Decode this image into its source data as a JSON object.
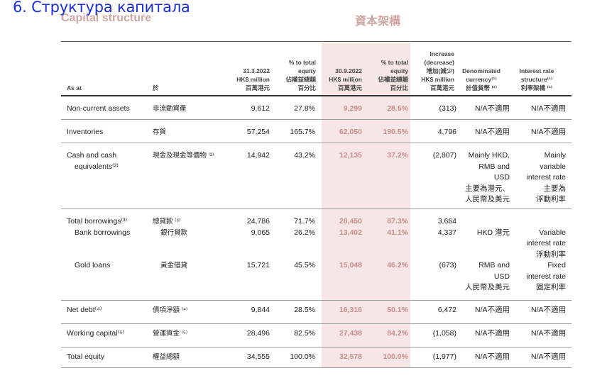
{
  "overlay_title": "6. Структура капитала",
  "title_en": "Capital structure",
  "title_zh": "資本架構",
  "headers": {
    "as_at": "As at",
    "as_at_zh": "於",
    "col1": [
      "31.3.2022",
      "HK$ million",
      "百萬港元"
    ],
    "col2": [
      "% to total",
      "equity",
      "佔權益總額",
      "百分比"
    ],
    "col3": [
      "30.9.2022",
      "HK$ million",
      "百萬港元"
    ],
    "col4": [
      "% to total",
      "equity",
      "佔權益總額",
      "百分比"
    ],
    "col5": [
      "Increase",
      "(decrease)",
      "增加(減少)",
      "HK$ million",
      "百萬港元"
    ],
    "col6": [
      "Denominated",
      "currency⁽¹⁾",
      "計值貨幣 ⁽¹⁾"
    ],
    "col7": [
      "Interest rate",
      "structure⁽¹⁾",
      "利率架構 ⁽¹⁾"
    ]
  },
  "rows": [
    {
      "en": [
        "Non-current assets"
      ],
      "zh": [
        "非流動資產"
      ],
      "c1": [
        "9,612"
      ],
      "c2": [
        "27.8%"
      ],
      "c3": [
        "9,299"
      ],
      "c4": [
        "28.5%"
      ],
      "c5": [
        "(313)"
      ],
      "c6": [
        "N/A不適用"
      ],
      "c7": [
        "N/A不適用"
      ]
    },
    {
      "en": [
        "Inventories"
      ],
      "zh": [
        "存貨"
      ],
      "c1": [
        "57,254"
      ],
      "c2": [
        "165.7%"
      ],
      "c3": [
        "62,050"
      ],
      "c4": [
        "190.5%"
      ],
      "c5": [
        "4,796"
      ],
      "c6": [
        "N/A不適用"
      ],
      "c7": [
        "N/A不適用"
      ]
    },
    {
      "en": [
        "Cash and cash",
        "  equivalents⁽²⁾"
      ],
      "zh": [
        "現金及現金等價物 ⁽²⁾"
      ],
      "c1": [
        "14,942"
      ],
      "c2": [
        "43.2%"
      ],
      "c3": [
        "12,135"
      ],
      "c4": [
        "37.2%"
      ],
      "c5": [
        "(2,807)"
      ],
      "c6": [
        "Mainly HKD,",
        "RMB and",
        "USD",
        "主要為港元、",
        "人民幣及美元"
      ],
      "c7": [
        "Mainly",
        "variable",
        "interest rate",
        "主要為",
        "浮動利率"
      ]
    },
    {
      "en": [
        "Total borrowings⁽³⁾",
        "  Bank borrowings"
      ],
      "zh": [
        "總貸款 ⁽³⁾",
        "  銀行貸款"
      ],
      "c1": [
        "24,786",
        "9,065"
      ],
      "c2": [
        "71.7%",
        "26.2%"
      ],
      "c3": [
        "28,450",
        "13,402"
      ],
      "c4": [
        "87.3%",
        "41.1%"
      ],
      "c5": [
        "3,664",
        "4,337"
      ],
      "c6": [
        "",
        "HKD 港元"
      ],
      "c7": [
        "",
        "Variable",
        "interest rate",
        "浮動利率"
      ]
    },
    {
      "en": [
        "  Gold loans"
      ],
      "zh": [
        "  黃金借貸"
      ],
      "c1": [
        "15,721"
      ],
      "c2": [
        "45.5%"
      ],
      "c3": [
        "15,048"
      ],
      "c4": [
        "46.2%"
      ],
      "c5": [
        "(673)"
      ],
      "c6": [
        "RMB and",
        "USD",
        "人民幣及美元"
      ],
      "c7": [
        "Fixed",
        "interest rate",
        "固定利率"
      ]
    },
    {
      "en": [
        "Net debt⁽⁴⁾"
      ],
      "zh": [
        "債項淨額 ⁽⁴⁾"
      ],
      "c1": [
        "9,844"
      ],
      "c2": [
        "28.5%"
      ],
      "c3": [
        "16,316"
      ],
      "c4": [
        "50.1%"
      ],
      "c5": [
        "6,472"
      ],
      "c6": [
        "N/A不適用"
      ],
      "c7": [
        "N/A不適用"
      ]
    },
    {
      "en": [
        "Working capital⁽⁵⁾"
      ],
      "zh": [
        "營運資金 ⁽⁵⁾"
      ],
      "c1": [
        "28,496"
      ],
      "c2": [
        "82.5%"
      ],
      "c3": [
        "27,438"
      ],
      "c4": [
        "84.2%"
      ],
      "c5": [
        "(1,058)"
      ],
      "c6": [
        "N/A不適用"
      ],
      "c7": [
        "N/A不適用"
      ]
    },
    {
      "en": [
        "Total equity"
      ],
      "zh": [
        "權益總額"
      ],
      "c1": [
        "34,555"
      ],
      "c2": [
        "100.0%"
      ],
      "c3": [
        "32,578"
      ],
      "c4": [
        "100.0%"
      ],
      "c5": [
        "(1,977)"
      ],
      "c6": [
        "N/A不適用"
      ],
      "c7": [
        "N/A不適用"
      ]
    }
  ]
}
